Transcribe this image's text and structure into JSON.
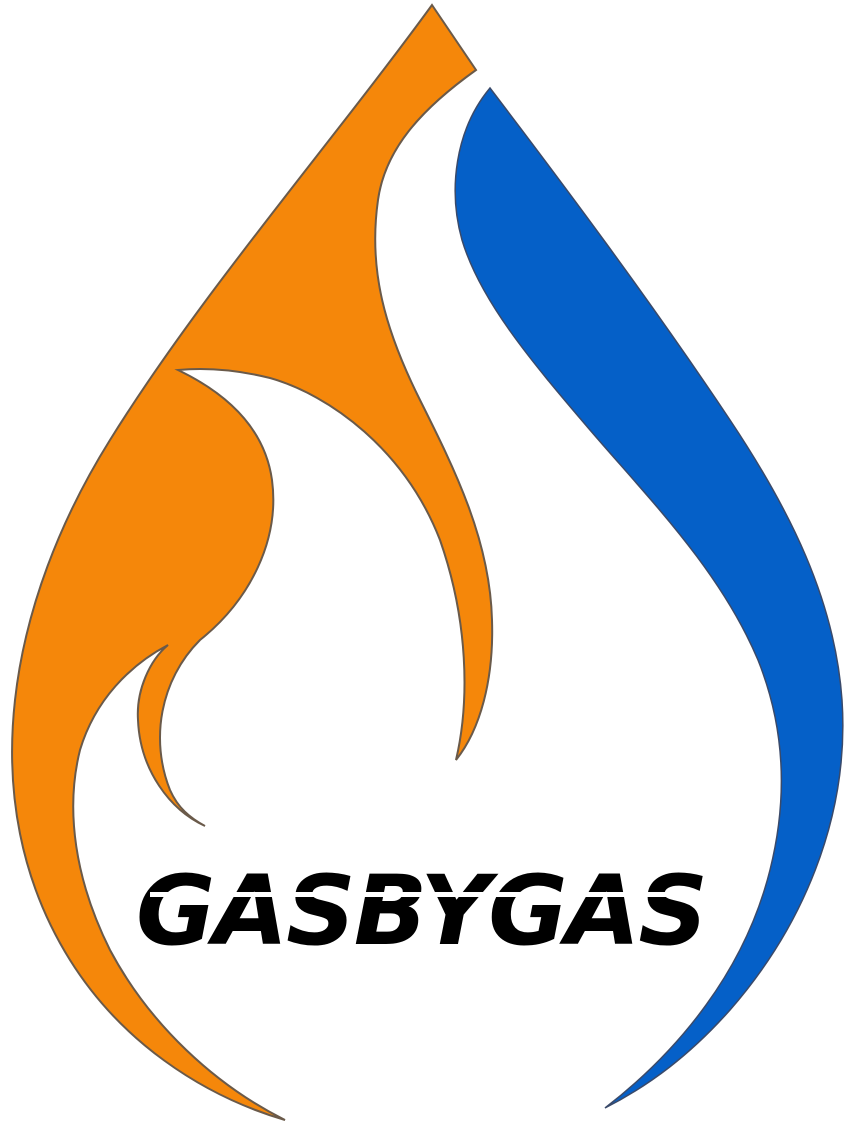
{
  "logo": {
    "brand_name": "GASBYGAS",
    "colors": {
      "flame": "#f5870a",
      "water": "#0560c8",
      "outline": "#6a5a4a",
      "text": "#000000",
      "background": "#ffffff"
    },
    "icons": [
      "flame-shape-icon",
      "water-drop-shape-icon"
    ]
  }
}
